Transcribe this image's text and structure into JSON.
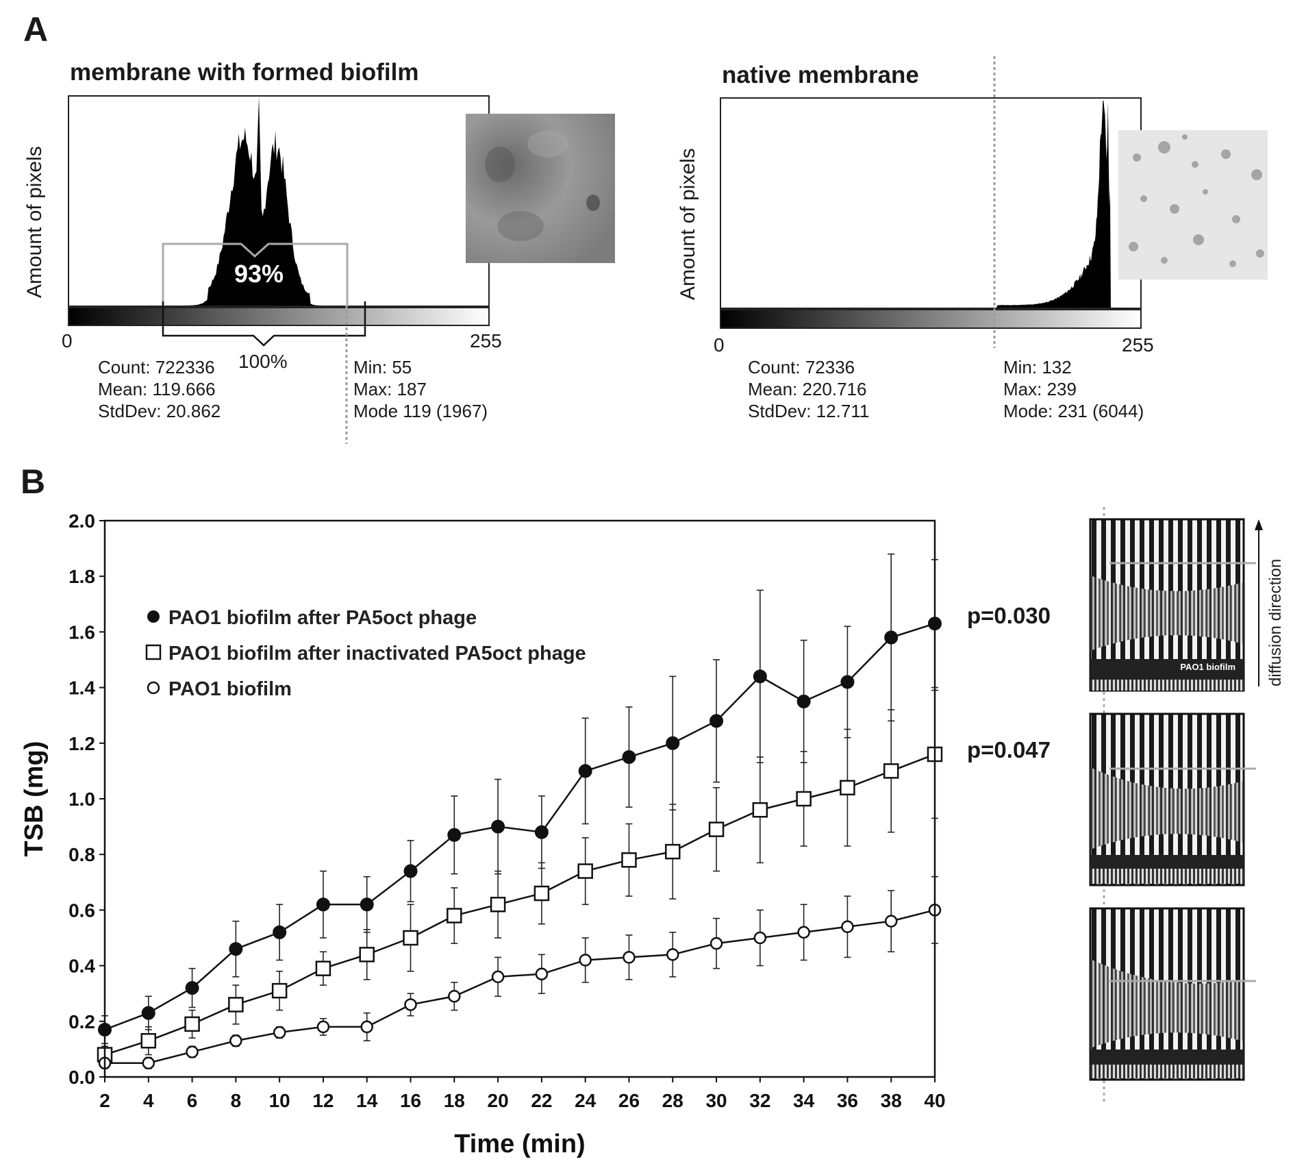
{
  "panelA": {
    "label": "A",
    "left": {
      "title": "membrane with formed biofilm",
      "ylabel": "Amount of pixels",
      "x_min_label": "0",
      "x_max_label": "255",
      "bracket_pct": "93%",
      "full_pct": "100%",
      "count": "Count: 722336",
      "mean": "Mean: 119.666",
      "stddev": "StdDev: 20.862",
      "min": "Min: 55",
      "max": "Max: 187",
      "mode": "Mode 119 (1967)"
    },
    "right": {
      "title": "native membrane",
      "ylabel": "Amount of pixels",
      "x_min_label": "0",
      "x_max_label": "255",
      "count": "Count: 72336",
      "mean": "Mean: 220.716",
      "stddev": "StdDev: 12.711",
      "min": "Min: 132",
      "max": "Max: 239",
      "mode": "Mode: 231 (6044)"
    }
  },
  "panelB": {
    "label": "B",
    "p_value_1": "p=0.030",
    "p_value_2": "p=0.047",
    "image_label": "PAO1 biofilm",
    "diffusion_label": "diffusion direction"
  },
  "chart_data": {
    "type": "line",
    "title": "",
    "xlabel": "Time (min)",
    "ylabel": "TSB (mg)",
    "xlim": [
      2,
      40
    ],
    "ylim": [
      0,
      2
    ],
    "x": [
      2,
      4,
      6,
      8,
      10,
      12,
      14,
      16,
      18,
      20,
      22,
      24,
      26,
      28,
      30,
      32,
      34,
      36,
      38,
      40
    ],
    "x_ticks": [
      "2",
      "4",
      "6",
      "8",
      "10",
      "12",
      "14",
      "16",
      "18",
      "20",
      "22",
      "24",
      "26",
      "28",
      "30",
      "32",
      "34",
      "36",
      "38",
      "40"
    ],
    "y_ticks": [
      "0.0",
      "0.2",
      "0.4",
      "0.6",
      "0.8",
      "1.0",
      "1.2",
      "1.4",
      "1.6",
      "1.8",
      "2.0"
    ],
    "series": [
      {
        "name": "PAO1 biofilm after PA5oct phage",
        "marker": "filled-circle",
        "values": [
          0.17,
          0.23,
          0.32,
          0.46,
          0.52,
          0.62,
          0.62,
          0.74,
          0.87,
          0.9,
          0.88,
          1.1,
          1.15,
          1.2,
          1.28,
          1.44,
          1.35,
          1.42,
          1.58,
          1.63
        ],
        "errors": [
          0.05,
          0.06,
          0.07,
          0.1,
          0.1,
          0.12,
          0.1,
          0.11,
          0.14,
          0.17,
          0.13,
          0.19,
          0.18,
          0.24,
          0.22,
          0.31,
          0.22,
          0.2,
          0.3,
          0.23
        ]
      },
      {
        "name": "PAO1 biofilm after inactivated PA5oct phage",
        "marker": "open-square",
        "values": [
          0.08,
          0.13,
          0.19,
          0.26,
          0.31,
          0.39,
          0.44,
          0.5,
          0.58,
          0.62,
          0.66,
          0.74,
          0.78,
          0.81,
          0.89,
          0.96,
          1.0,
          1.04,
          1.1,
          1.16
        ],
        "errors": [
          0.03,
          0.05,
          0.05,
          0.07,
          0.07,
          0.06,
          0.09,
          0.12,
          0.1,
          0.12,
          0.11,
          0.12,
          0.13,
          0.17,
          0.15,
          0.19,
          0.17,
          0.21,
          0.22,
          0.23
        ]
      },
      {
        "name": "PAO1 biofilm",
        "marker": "open-circle",
        "values": [
          0.05,
          0.05,
          0.09,
          0.13,
          0.16,
          0.18,
          0.18,
          0.26,
          0.29,
          0.36,
          0.37,
          0.42,
          0.43,
          0.44,
          0.48,
          0.5,
          0.52,
          0.54,
          0.56,
          0.6
        ],
        "errors": [
          0.02,
          0.02,
          0.02,
          0.02,
          0.02,
          0.03,
          0.05,
          0.04,
          0.05,
          0.07,
          0.07,
          0.08,
          0.08,
          0.08,
          0.09,
          0.1,
          0.1,
          0.11,
          0.11,
          0.12
        ]
      }
    ]
  }
}
